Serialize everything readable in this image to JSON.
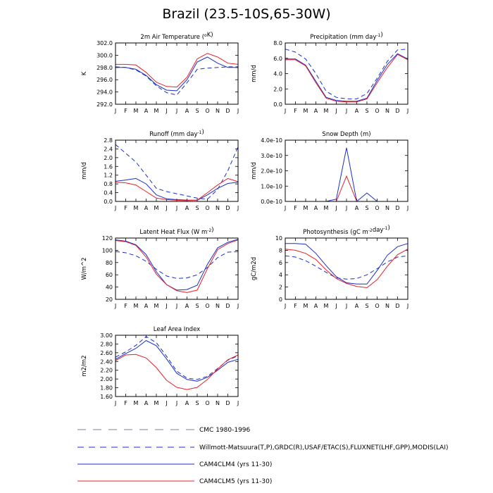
{
  "title": "Brazil (23.5-10S,65-30W)",
  "months": [
    "J",
    "F",
    "M",
    "A",
    "M",
    "J",
    "J",
    "A",
    "S",
    "O",
    "N",
    "D",
    "J"
  ],
  "styles": {
    "cmc": {
      "color": "#7f7f9f",
      "dash": "10,8"
    },
    "obs": {
      "color": "#1a2fc8",
      "dash": "6,4"
    },
    "clm4": {
      "color": "#1a2fc8",
      "dash": ""
    },
    "clm5": {
      "color": "#e8202a",
      "dash": ""
    }
  },
  "legend": [
    {
      "key": "cmc",
      "label": "CMC 1980-1996"
    },
    {
      "key": "obs",
      "label": "Willmott-Matsuura(T,P),GRDC(R),USAF/ETAC(S),FLUXNET(LHF,GPP),MODIS(LAI)"
    },
    {
      "key": "clm4",
      "label": "CAM4CLM4 (yrs 11-30)"
    },
    {
      "key": "clm5",
      "label": "CAM4CLM5 (yrs 11-30)"
    }
  ],
  "chart_data": [
    {
      "type": "line",
      "id": "temp",
      "title": "2m Air Temperature (",
      "title_sup": "o",
      "title_after": "K)",
      "ylabel": "K",
      "ylim": [
        292,
        302
      ],
      "yticks": [
        "292.0",
        "294.0",
        "296.0",
        "298.0",
        "300.0",
        "302.0"
      ],
      "ytick_values": [
        292,
        294,
        296,
        298,
        300,
        302
      ],
      "series": [
        {
          "key": "obs",
          "values": [
            298.1,
            298.0,
            297.6,
            296.6,
            295.0,
            293.9,
            293.5,
            295.5,
            297.7,
            297.9,
            298.0,
            298.1,
            298.1
          ]
        },
        {
          "key": "clm4",
          "values": [
            298.0,
            298.0,
            297.7,
            296.7,
            295.2,
            294.3,
            294.2,
            296.0,
            298.9,
            299.7,
            298.7,
            298.0,
            298.0
          ]
        },
        {
          "key": "clm5",
          "values": [
            298.5,
            298.5,
            298.4,
            297.2,
            295.6,
            294.9,
            294.8,
            296.4,
            299.4,
            300.3,
            299.7,
            298.7,
            298.5
          ]
        }
      ]
    },
    {
      "type": "line",
      "id": "precip",
      "title": "Precipitation (mm day",
      "title_sup": "-1",
      "title_after": ")",
      "ylabel": "mm/d",
      "ylim": [
        0,
        8
      ],
      "yticks": [
        "0.0",
        "2.0",
        "4.0",
        "6.0",
        "8.0"
      ],
      "ytick_values": [
        0,
        2,
        4,
        6,
        8
      ],
      "series": [
        {
          "key": "obs",
          "values": [
            7.2,
            6.8,
            5.9,
            4.0,
            1.7,
            0.9,
            0.7,
            0.7,
            1.4,
            3.4,
            5.6,
            7.1,
            7.2
          ]
        },
        {
          "key": "clm4",
          "values": [
            5.9,
            5.9,
            5.1,
            3.0,
            0.9,
            0.5,
            0.4,
            0.4,
            0.8,
            3.1,
            5.2,
            6.6,
            5.9
          ]
        },
        {
          "key": "clm5",
          "values": [
            5.8,
            5.8,
            5.0,
            2.8,
            0.8,
            0.4,
            0.3,
            0.3,
            0.7,
            2.8,
            4.8,
            6.5,
            5.8
          ]
        }
      ]
    },
    {
      "type": "line",
      "id": "runoff",
      "title": "Runoff (mm day",
      "title_sup": "-1",
      "title_after": ")",
      "ylabel": "mm/d",
      "ylim": [
        0,
        2.8
      ],
      "yticks": [
        "0.0",
        "0.4",
        "0.8",
        "1.2",
        "1.6",
        "2.0",
        "2.4",
        "2.8"
      ],
      "ytick_values": [
        0,
        0.4,
        0.8,
        1.2,
        1.6,
        2.0,
        2.4,
        2.8
      ],
      "series": [
        {
          "key": "obs",
          "values": [
            2.6,
            2.2,
            1.8,
            1.2,
            0.6,
            0.45,
            0.35,
            0.25,
            0.15,
            0.1,
            0.55,
            1.4,
            2.5
          ]
        },
        {
          "key": "clm4",
          "values": [
            0.92,
            0.98,
            1.05,
            0.8,
            0.3,
            0.12,
            0.08,
            0.06,
            0.05,
            0.3,
            0.6,
            0.82,
            0.88
          ]
        },
        {
          "key": "clm5",
          "values": [
            0.88,
            0.85,
            0.75,
            0.45,
            0.15,
            0.08,
            0.05,
            0.04,
            0.06,
            0.4,
            0.75,
            1.05,
            0.9
          ]
        }
      ]
    },
    {
      "type": "line",
      "id": "snow",
      "title": "Snow Depth (m)",
      "title_sup": "",
      "title_after": "",
      "ylabel": "mm/d",
      "ylim": [
        0,
        4e-10
      ],
      "yticks": [
        "0.0e-10",
        "1.0e-10",
        "2.0e-10",
        "3.0e-10",
        "4.0e-10"
      ],
      "ytick_values": [
        0,
        1e-10,
        2e-10,
        3e-10,
        4e-10
      ],
      "series": [
        {
          "key": "clm4",
          "values": [
            0,
            0,
            0,
            0,
            0,
            1.5e-11,
            3.5e-10,
            0,
            5.5e-11,
            0,
            null,
            null,
            null
          ]
        },
        {
          "key": "clm5",
          "values": [
            0,
            0,
            0,
            0,
            0,
            0,
            1.65e-10,
            0,
            0,
            0,
            null,
            null,
            null
          ]
        }
      ]
    },
    {
      "type": "line",
      "id": "lhf",
      "title": "Latent Heat Flux (W m",
      "title_sup": "-2",
      "title_after": ")",
      "ylabel": "W/m^2",
      "ylim": [
        20,
        120
      ],
      "yticks": [
        "20",
        "40",
        "60",
        "80",
        "100",
        "120"
      ],
      "ytick_values": [
        20,
        40,
        60,
        80,
        100,
        120
      ],
      "series": [
        {
          "key": "obs",
          "values": [
            98,
            96,
            91,
            82,
            69,
            58,
            54,
            55,
            60,
            72,
            88,
            97,
            98
          ]
        },
        {
          "key": "clm4",
          "values": [
            117,
            115,
            109,
            93,
            65,
            44,
            35,
            36,
            43,
            77,
            104,
            113,
            118
          ]
        },
        {
          "key": "clm5",
          "values": [
            116,
            114,
            108,
            89,
            61,
            44,
            34,
            31,
            35,
            70,
            101,
            111,
            117
          ]
        }
      ]
    },
    {
      "type": "line",
      "id": "gpp",
      "title": "Photosynthesis (gC m",
      "title_sup": "-2",
      "title_after": "day",
      "title_sup2": "-1",
      "title_end": ")",
      "ylabel": "gC/m2d",
      "ylim": [
        0,
        10
      ],
      "yticks": [
        "0",
        "2",
        "4",
        "6",
        "8",
        "10"
      ],
      "ytick_values": [
        0,
        2,
        4,
        6,
        8,
        10
      ],
      "series": [
        {
          "key": "obs",
          "values": [
            7.1,
            6.9,
            6.3,
            5.4,
            4.4,
            3.5,
            3.3,
            3.4,
            4.0,
            5.0,
            6.1,
            6.9,
            7.1
          ]
        },
        {
          "key": "clm4",
          "values": [
            9.1,
            9.1,
            9.0,
            7.5,
            5.5,
            3.7,
            2.7,
            2.5,
            2.5,
            4.7,
            7.2,
            8.6,
            9.1
          ]
        },
        {
          "key": "clm5",
          "values": [
            8.2,
            8.0,
            7.5,
            6.5,
            4.8,
            3.4,
            2.6,
            2.1,
            1.9,
            3.2,
            5.4,
            7.3,
            8.2
          ]
        }
      ]
    },
    {
      "type": "line",
      "id": "lai",
      "title": "Leaf Area Index",
      "title_sup": "",
      "title_after": "",
      "ylabel": "m2/m2",
      "ylim": [
        1.6,
        3.0
      ],
      "yticks": [
        "1.60",
        "1.80",
        "2.00",
        "2.20",
        "2.40",
        "2.60",
        "2.80",
        "3.00"
      ],
      "ytick_values": [
        1.6,
        1.8,
        2.0,
        2.2,
        2.4,
        2.6,
        2.8,
        3.0
      ],
      "series": [
        {
          "key": "obs",
          "values": [
            2.5,
            2.62,
            2.77,
            2.97,
            2.83,
            2.52,
            2.18,
            2.02,
            1.99,
            2.06,
            2.24,
            2.43,
            2.53
          ]
        },
        {
          "key": "clm4",
          "values": [
            2.45,
            2.58,
            2.7,
            2.88,
            2.76,
            2.46,
            2.13,
            1.99,
            1.95,
            2.04,
            2.2,
            2.38,
            2.45
          ]
        },
        {
          "key": "clm5",
          "values": [
            2.42,
            2.55,
            2.56,
            2.48,
            2.26,
            1.97,
            1.81,
            1.76,
            1.81,
            1.99,
            2.23,
            2.44,
            2.55
          ]
        }
      ]
    }
  ]
}
